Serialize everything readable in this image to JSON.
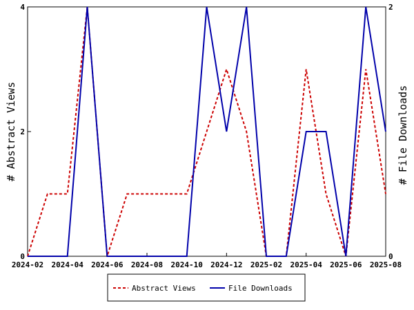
{
  "chart_data": {
    "type": "line",
    "x": [
      "2024-02",
      "2024-03",
      "2024-04",
      "2024-05",
      "2024-06",
      "2024-07",
      "2024-08",
      "2024-09",
      "2024-10",
      "2024-11",
      "2024-12",
      "2025-01",
      "2025-02",
      "2025-03",
      "2025-04",
      "2025-05",
      "2025-06",
      "2025-07",
      "2025-08"
    ],
    "x_ticks": [
      "2024-02",
      "2024-04",
      "2024-06",
      "2024-08",
      "2024-10",
      "2024-12",
      "2025-02",
      "2025-04",
      "2025-06",
      "2025-08"
    ],
    "series": [
      {
        "name": "Abstract Views",
        "axis": "left",
        "color": "#cc0000",
        "style": "dashed",
        "values": [
          0,
          1,
          1,
          4,
          0,
          1,
          1,
          1,
          1,
          2,
          3,
          2,
          0,
          0,
          3,
          1,
          0,
          3,
          1
        ]
      },
      {
        "name": "File Downloads",
        "axis": "right",
        "color": "#0000aa",
        "style": "solid",
        "values": [
          0,
          0,
          0,
          2,
          0,
          0,
          0,
          0,
          0,
          2,
          1,
          2,
          0,
          0,
          1,
          1,
          0,
          2,
          1
        ]
      }
    ],
    "ylabel": "# Abstract Views",
    "ylabel_right": "# File Downloads",
    "ylim": [
      0,
      4
    ],
    "ylim_right": [
      0,
      2
    ],
    "y_ticks": [
      0,
      2,
      4
    ],
    "y_ticks_right": [
      0,
      2
    ],
    "grid": false,
    "legend_position": "bottom-center"
  }
}
